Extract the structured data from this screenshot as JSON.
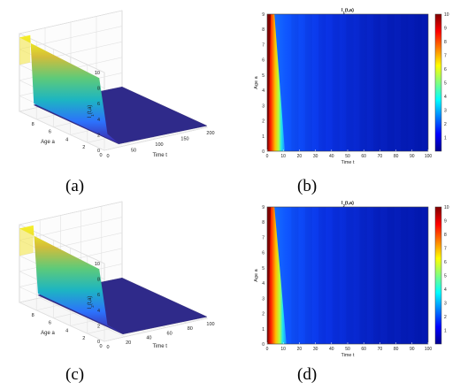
{
  "figure": {
    "captions": [
      "(a)",
      "(b)",
      "(c)",
      "(d)"
    ]
  },
  "chart_data": [
    {
      "panel": "(a)",
      "type": "surface",
      "zlabel": "I1(t,a)",
      "xlabel": "Time t",
      "ylabel": "Age a",
      "x_ticks": [
        "0",
        "50",
        "100",
        "150",
        "200"
      ],
      "y_ticks": [
        "0",
        "2",
        "4",
        "6",
        "8"
      ],
      "z_ticks": [
        "0",
        "2",
        "4",
        "6",
        "8",
        "10"
      ],
      "xlim": [
        0,
        200
      ],
      "ylim": [
        0,
        10
      ],
      "zlim": [
        0,
        10
      ],
      "colormap": "parula"
    },
    {
      "panel": "(b)",
      "type": "heatmap",
      "title": "I1(t,a)",
      "xlabel": "Time t",
      "ylabel": "Age a",
      "x_ticks": [
        "0",
        "10",
        "20",
        "30",
        "40",
        "50",
        "60",
        "70",
        "80",
        "90",
        "100"
      ],
      "y_ticks": [
        "0",
        "1",
        "2",
        "3",
        "4",
        "5",
        "6",
        "7",
        "8",
        "9"
      ],
      "colorbar_ticks": [
        "1",
        "2",
        "3",
        "4",
        "5",
        "6",
        "7",
        "8",
        "9",
        "10"
      ],
      "xlim": [
        0,
        100
      ],
      "ylim": [
        0,
        9
      ],
      "clim": [
        0,
        10
      ],
      "colormap": "jet"
    },
    {
      "panel": "(c)",
      "type": "surface",
      "zlabel": "I2(t,a)",
      "xlabel": "Time t",
      "ylabel": "Age a",
      "x_ticks": [
        "0",
        "20",
        "40",
        "60",
        "80",
        "100"
      ],
      "y_ticks": [
        "0",
        "2",
        "4",
        "6",
        "8"
      ],
      "z_ticks": [
        "0",
        "2",
        "4",
        "6",
        "8",
        "10"
      ],
      "xlim": [
        0,
        100
      ],
      "ylim": [
        0,
        10
      ],
      "zlim": [
        0,
        10
      ],
      "colormap": "parula"
    },
    {
      "panel": "(d)",
      "type": "heatmap",
      "title": "I2(t,a)",
      "xlabel": "Time t",
      "ylabel": "Age a",
      "x_ticks": [
        "0",
        "10",
        "20",
        "30",
        "40",
        "50",
        "60",
        "70",
        "80",
        "90",
        "100"
      ],
      "y_ticks": [
        "0",
        "1",
        "2",
        "3",
        "4",
        "5",
        "6",
        "7",
        "8",
        "9"
      ],
      "colorbar_ticks": [
        "1",
        "2",
        "3",
        "4",
        "5",
        "6",
        "7",
        "8",
        "9",
        "10"
      ],
      "xlim": [
        0,
        100
      ],
      "ylim": [
        0,
        9
      ],
      "clim": [
        0,
        10
      ],
      "colormap": "jet"
    }
  ]
}
